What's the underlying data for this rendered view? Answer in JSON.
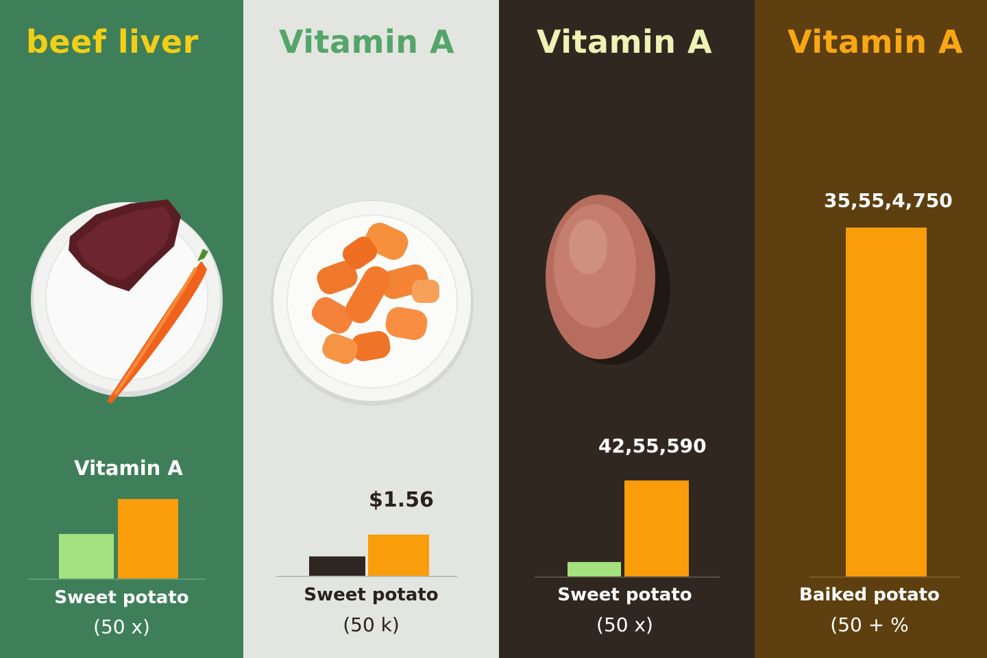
{
  "panels": [
    {
      "title": "beef liver",
      "subtitle": "Vitamin A",
      "category": "Sweet potato",
      "note": "(50 x)",
      "value_label": "",
      "image": "beef-liver-and-carrot-plate"
    },
    {
      "title": "Vitamin A",
      "subtitle": "",
      "category": "Sweet potato",
      "note": "(50 k)",
      "value_label": "$1.56",
      "image": "chopped-carrots-plate"
    },
    {
      "title": "Vitamin A",
      "subtitle": "",
      "category": "Sweet potato",
      "note": "(50 x)",
      "value_label": "42,55,590",
      "image": "sweet-potato"
    },
    {
      "title": "Vitamin A",
      "subtitle": "",
      "category": "Baiked potato",
      "note": "(50 + %",
      "value_label": "35,55,4,750",
      "image": ""
    }
  ],
  "chart_data": [
    {
      "type": "bar",
      "title": "beef liver",
      "subtitle": "Vitamin A",
      "categories": [
        "Sweet potato"
      ],
      "series": [
        {
          "color": "#a3e27f",
          "values": [
            0.56
          ]
        },
        {
          "color": "#f99d0a",
          "values": [
            1.0
          ]
        }
      ],
      "ylim": [
        0,
        1
      ]
    },
    {
      "type": "bar",
      "title": "Vitamin A",
      "categories": [
        "Sweet potato"
      ],
      "series": [
        {
          "color": "#2e2620",
          "values": [
            0.47
          ]
        },
        {
          "color": "#f99d0a",
          "values": [
            1.0
          ]
        }
      ],
      "data_labels": [
        "$1.56"
      ],
      "ylim": [
        0,
        1
      ]
    },
    {
      "type": "bar",
      "title": "Vitamin A",
      "categories": [
        "Sweet potato"
      ],
      "series": [
        {
          "color": "#a3e27f",
          "values": [
            0.15
          ]
        },
        {
          "color": "#f99d0a",
          "values": [
            1.0
          ]
        }
      ],
      "data_labels": [
        "42,55,590"
      ],
      "ylim": [
        0,
        1
      ]
    },
    {
      "type": "bar",
      "title": "Vitamin A",
      "categories": [
        "Baiked potato"
      ],
      "series": [
        {
          "color": "#f99d0a",
          "values": [
            1.0
          ]
        }
      ],
      "data_labels": [
        "35,55,4,750"
      ],
      "ylim": [
        0,
        1
      ]
    }
  ]
}
